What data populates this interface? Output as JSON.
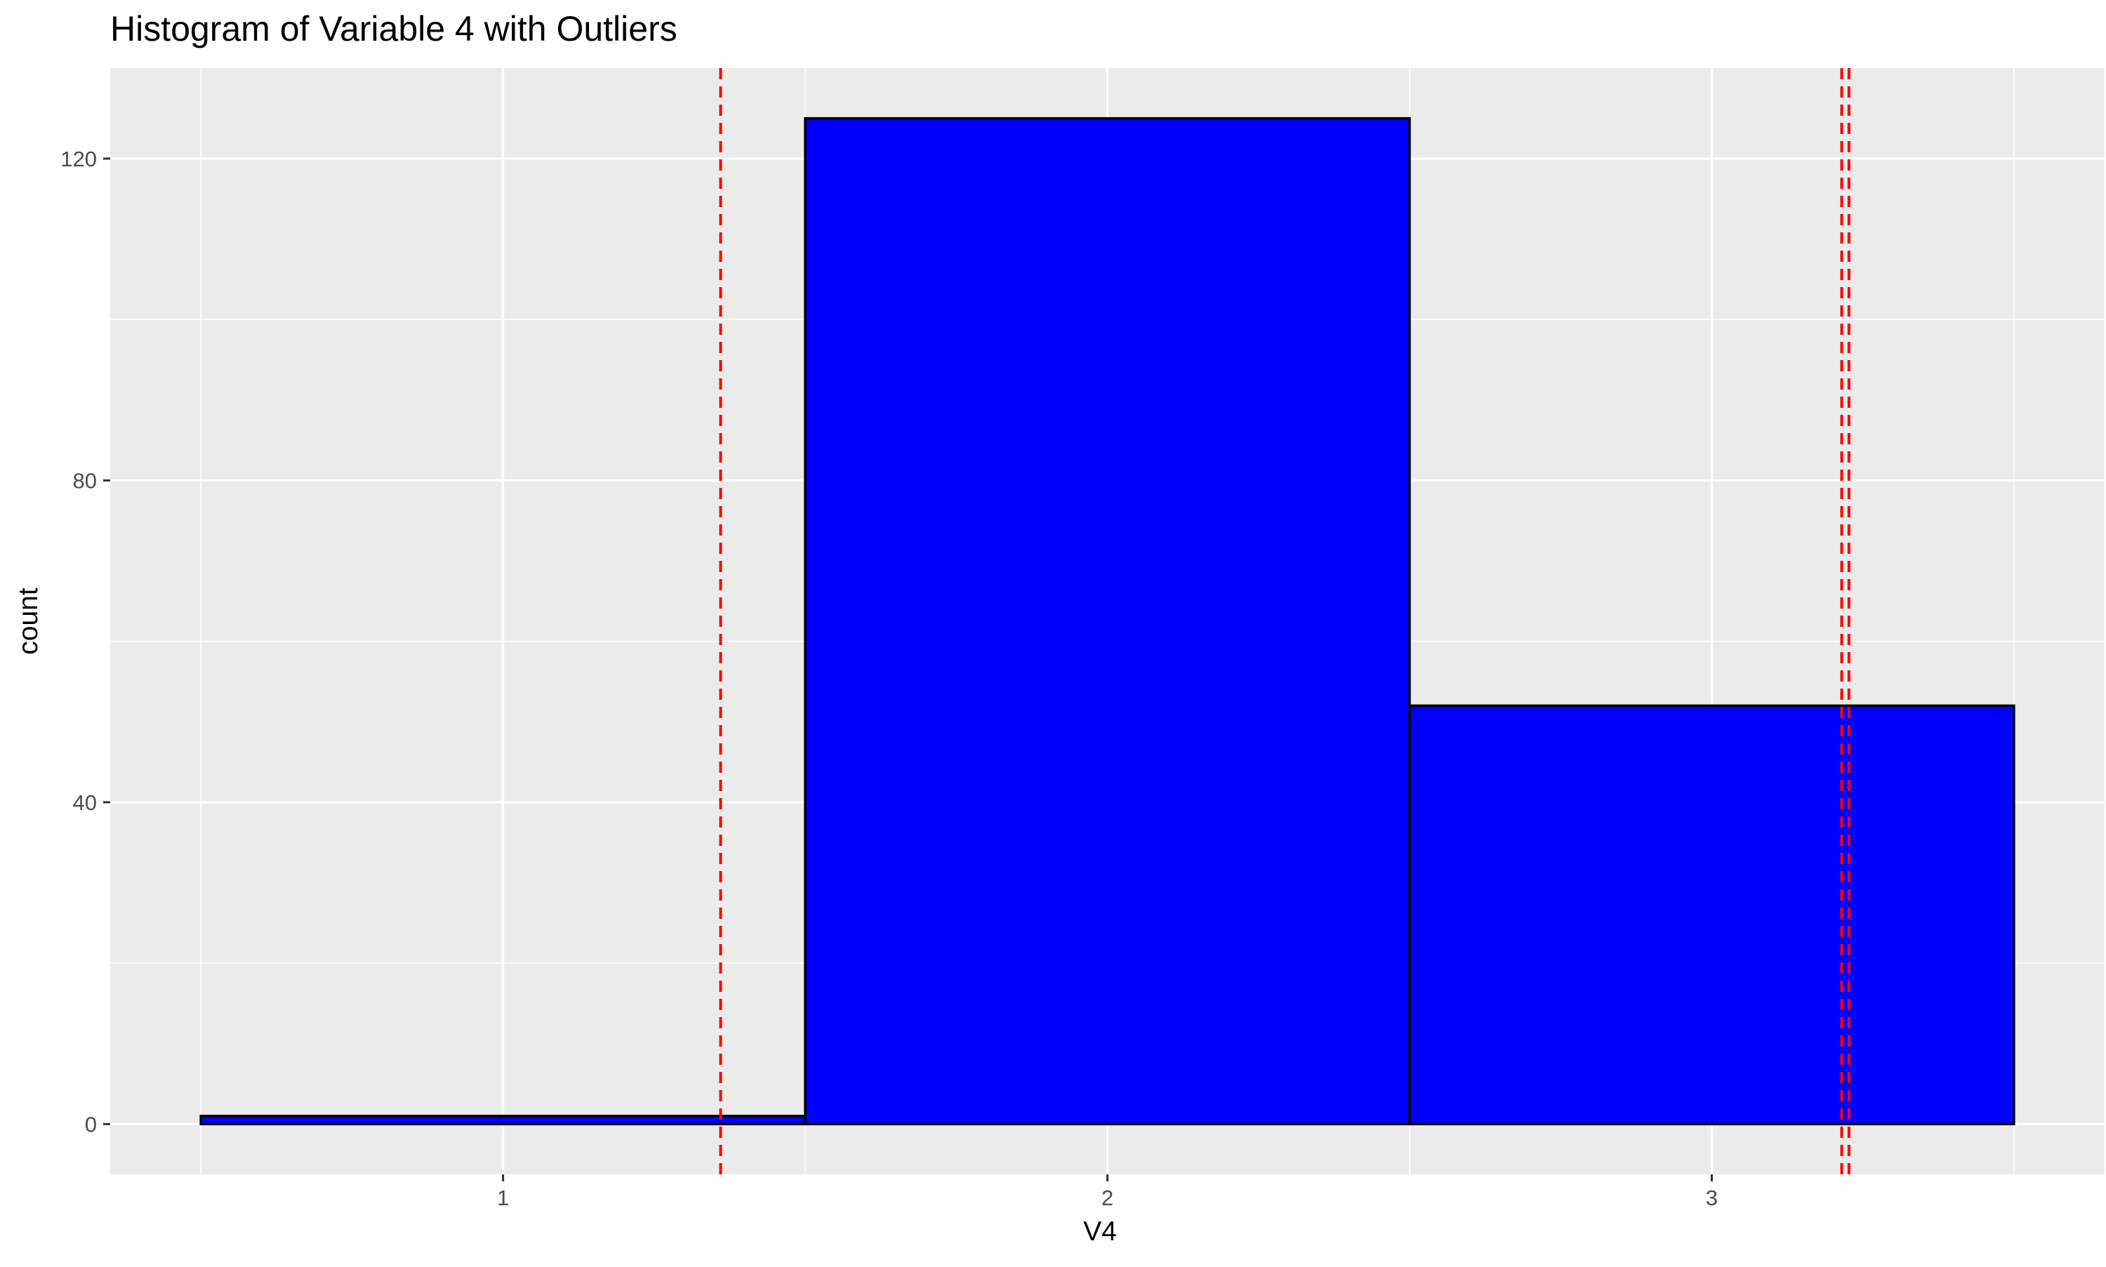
{
  "chart_data": {
    "type": "bar",
    "title": "Histogram of Variable 4 with Outliers",
    "xlabel": "V4",
    "ylabel": "count",
    "bins": [
      {
        "x_start": 0.5,
        "x_end": 1.5,
        "count": 1
      },
      {
        "x_start": 1.5,
        "x_end": 2.5,
        "count": 125
      },
      {
        "x_start": 2.5,
        "x_end": 3.5,
        "count": 52
      }
    ],
    "xlim": [
      0.35,
      3.65
    ],
    "ylim": [
      -6.25,
      131.25
    ],
    "x_ticks": [
      1,
      2,
      3
    ],
    "x_tick_labels": [
      "1",
      "2",
      "3"
    ],
    "x_minor_gridlines": [
      0.5,
      1.5,
      2.5,
      3.5
    ],
    "y_ticks": [
      0,
      40,
      80,
      120
    ],
    "y_tick_labels": [
      "0",
      "40",
      "80",
      "120"
    ],
    "y_minor_gridlines": [
      20,
      60,
      100
    ],
    "reference_lines": [
      {
        "x": 1.36,
        "style": "dashed",
        "color": "#ff0000"
      },
      {
        "x": 3.215,
        "style": "dashed",
        "color": "#ff0000"
      },
      {
        "x": 3.227,
        "style": "dashed",
        "color": "#ff0000"
      }
    ],
    "bar_fill": "#0000ff",
    "bar_outline": "#000000",
    "panel_background": "#ebebeb",
    "grid": true,
    "legend": "none"
  }
}
